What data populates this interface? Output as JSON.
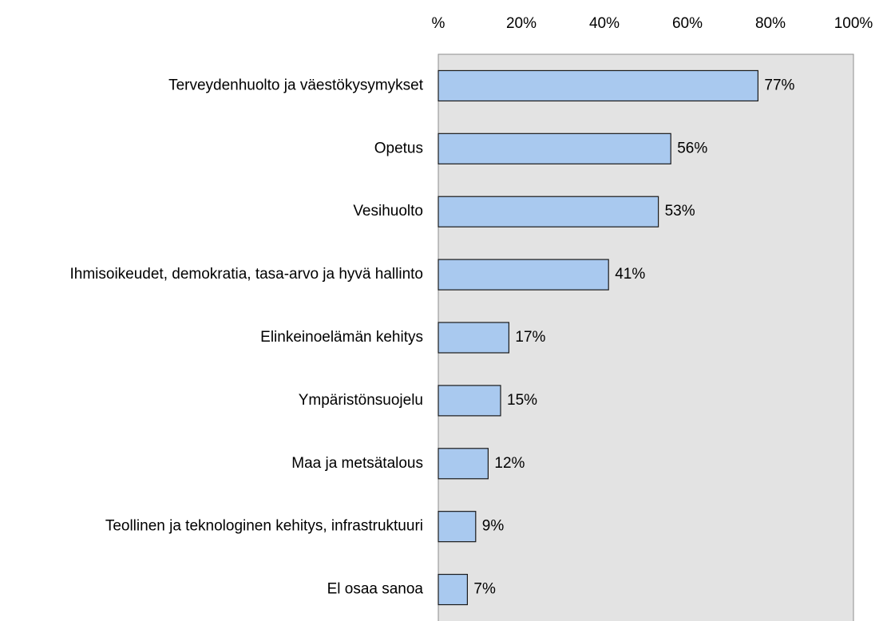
{
  "chart_data": {
    "type": "bar",
    "orientation": "horizontal",
    "categories": [
      "Terveydenhuolto ja väestökysymykset",
      "Opetus",
      "Vesihuolto",
      "Ihmisoikeudet, demokratia, tasa-arvo ja hyvä hallinto",
      "Elinkeinoelämän kehitys",
      "Ympäristönsuojelu",
      "Maa ja metsätalous",
      "Teollinen ja teknologinen kehitys, infrastruktuuri",
      "El osaa sanoa"
    ],
    "values": [
      77,
      56,
      53,
      41,
      17,
      15,
      12,
      9,
      7
    ],
    "value_labels": [
      "77%",
      "56%",
      "53%",
      "41%",
      "17%",
      "15%",
      "12%",
      "9%",
      "7%"
    ],
    "color": "#a9c9ef",
    "xlim": [
      0,
      100
    ],
    "xticks": [
      {
        "value": 0,
        "label": "%"
      },
      {
        "value": 20,
        "label": "20%"
      },
      {
        "value": 40,
        "label": "40%"
      },
      {
        "value": 60,
        "label": "60%"
      },
      {
        "value": 80,
        "label": "80%"
      },
      {
        "value": 100,
        "label": "100%"
      }
    ],
    "grid": false
  }
}
